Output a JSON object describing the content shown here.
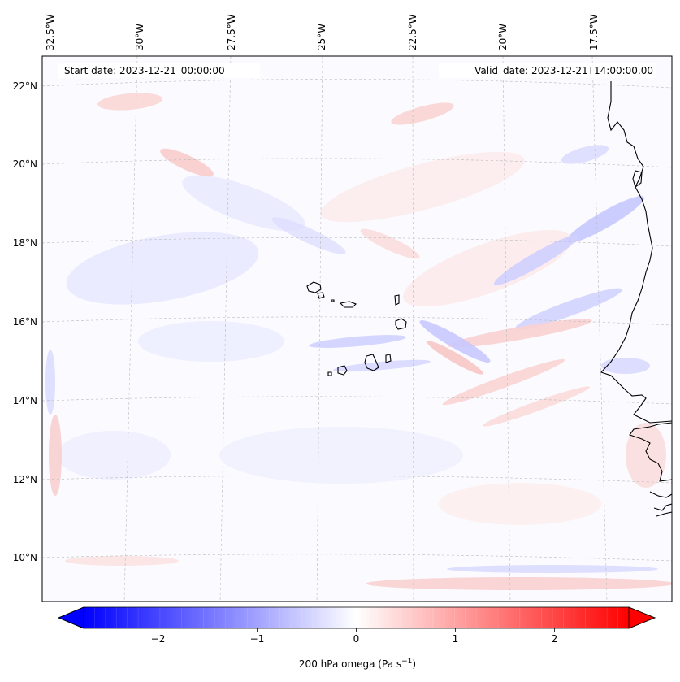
{
  "map": {
    "start_date": "Start date: 2023-12-21_00:00:00",
    "valid_date": "Valid_date: 2023-12-21T14:00:00.00",
    "lon_labels": [
      "32.5°W",
      "30°W",
      "27.5°W",
      "25°W",
      "22.5°W",
      "20°W",
      "17.5°W"
    ],
    "lat_labels": [
      "22°N",
      "20°N",
      "18°N",
      "16°N",
      "14°N",
      "12°N",
      "10°N"
    ],
    "colorbar": {
      "min": -2.75,
      "max": 2.75,
      "ticks": [
        -2,
        -1,
        0,
        1,
        2
      ],
      "tick_labels": [
        "−2",
        "−1",
        "0",
        "1",
        "2"
      ],
      "label": "200 hPa omega (Pa s",
      "label_sup": "−1",
      "label_end": ")",
      "colors": {
        "neg": "#0000ff",
        "zero": "#ffffff",
        "pos": "#ff0000"
      }
    },
    "coast_color": "#000000",
    "grid_color": "#bbbbbb"
  }
}
